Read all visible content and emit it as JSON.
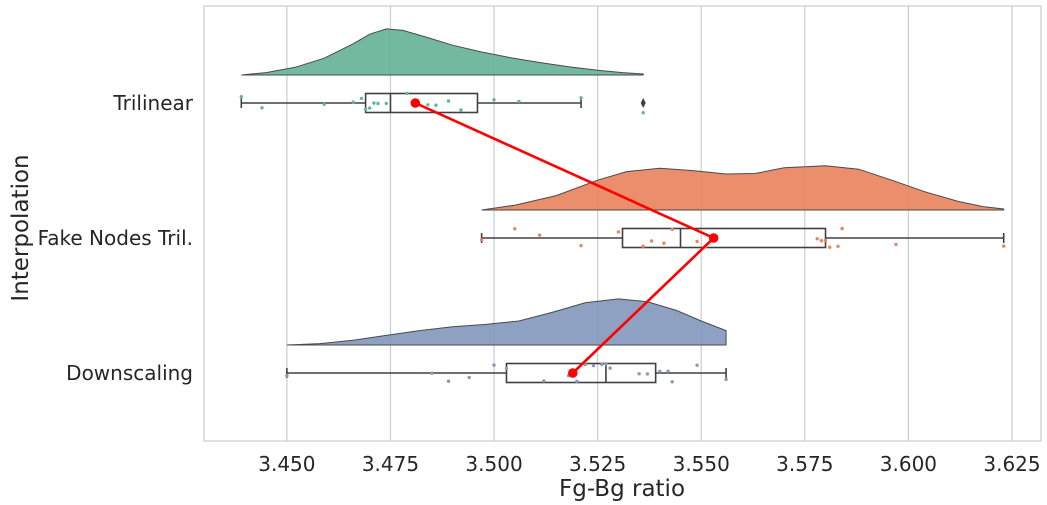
{
  "chart_data": {
    "type": "raincloud",
    "title": "",
    "xlabel": "Fg-Bg ratio",
    "ylabel": "Interpolation",
    "xlim": [
      3.43,
      3.632
    ],
    "x_ticks": [
      "3.450",
      "3.475",
      "3.500",
      "3.525",
      "3.550",
      "3.575",
      "3.600",
      "3.625"
    ],
    "grid": "vertical",
    "categories": [
      "Trilinear",
      "Fake Nodes Tril.",
      "Downscaling"
    ],
    "colors": {
      "Trilinear": "#66b397",
      "Fake Nodes Tril.": "#e8845f",
      "Downscaling": "#8699bd",
      "mean_line": "#ff0000"
    },
    "series": [
      {
        "name": "Trilinear",
        "box": {
          "whisker_low": 3.439,
          "q1": 3.469,
          "median": 3.475,
          "q3": 3.496,
          "whisker_high": 3.521
        },
        "outliers": [
          3.536
        ],
        "mean": 3.481,
        "density": [
          [
            3.439,
            0.0
          ],
          [
            3.445,
            0.05
          ],
          [
            3.452,
            0.16
          ],
          [
            3.459,
            0.35
          ],
          [
            3.466,
            0.65
          ],
          [
            3.47,
            0.85
          ],
          [
            3.474,
            0.96
          ],
          [
            3.478,
            0.93
          ],
          [
            3.484,
            0.78
          ],
          [
            3.49,
            0.62
          ],
          [
            3.497,
            0.48
          ],
          [
            3.504,
            0.36
          ],
          [
            3.511,
            0.26
          ],
          [
            3.518,
            0.17
          ],
          [
            3.525,
            0.1
          ],
          [
            3.531,
            0.05
          ],
          [
            3.536,
            0.02
          ]
        ],
        "points": [
          3.439,
          3.444,
          3.459,
          3.466,
          3.468,
          3.469,
          3.47,
          3.471,
          3.472,
          3.474,
          3.479,
          3.484,
          3.486,
          3.489,
          3.492,
          3.5,
          3.506,
          3.521,
          3.536
        ]
      },
      {
        "name": "Fake Nodes Tril.",
        "box": {
          "whisker_low": 3.497,
          "q1": 3.531,
          "median": 3.545,
          "q3": 3.58,
          "whisker_high": 3.623
        },
        "outliers": [],
        "mean": 3.553,
        "density": [
          [
            3.497,
            0.0
          ],
          [
            3.505,
            0.1
          ],
          [
            3.515,
            0.3
          ],
          [
            3.525,
            0.62
          ],
          [
            3.532,
            0.8
          ],
          [
            3.54,
            0.87
          ],
          [
            3.548,
            0.82
          ],
          [
            3.556,
            0.75
          ],
          [
            3.563,
            0.76
          ],
          [
            3.57,
            0.88
          ],
          [
            3.58,
            0.92
          ],
          [
            3.588,
            0.85
          ],
          [
            3.596,
            0.62
          ],
          [
            3.604,
            0.38
          ],
          [
            3.612,
            0.18
          ],
          [
            3.618,
            0.07
          ],
          [
            3.623,
            0.02
          ]
        ],
        "points": [
          3.497,
          3.505,
          3.511,
          3.521,
          3.53,
          3.536,
          3.538,
          3.541,
          3.543,
          3.549,
          3.551,
          3.553,
          3.578,
          3.579,
          3.58,
          3.581,
          3.583,
          3.584,
          3.597,
          3.623
        ]
      },
      {
        "name": "Downscaling",
        "box": {
          "whisker_low": 3.45,
          "q1": 3.503,
          "median": 3.527,
          "q3": 3.539,
          "whisker_high": 3.556
        },
        "outliers": [],
        "mean": 3.519,
        "density": [
          [
            3.45,
            0.0
          ],
          [
            3.458,
            0.03
          ],
          [
            3.466,
            0.1
          ],
          [
            3.474,
            0.2
          ],
          [
            3.482,
            0.3
          ],
          [
            3.49,
            0.38
          ],
          [
            3.498,
            0.43
          ],
          [
            3.506,
            0.5
          ],
          [
            3.514,
            0.68
          ],
          [
            3.522,
            0.88
          ],
          [
            3.53,
            0.96
          ],
          [
            3.537,
            0.9
          ],
          [
            3.544,
            0.72
          ],
          [
            3.55,
            0.5
          ],
          [
            3.556,
            0.3
          ]
        ],
        "points": [
          3.45,
          3.485,
          3.489,
          3.494,
          3.5,
          3.503,
          3.512,
          3.518,
          3.52,
          3.522,
          3.524,
          3.526,
          3.527,
          3.528,
          3.535,
          3.537,
          3.54,
          3.542,
          3.543,
          3.549,
          3.556
        ]
      }
    ]
  }
}
